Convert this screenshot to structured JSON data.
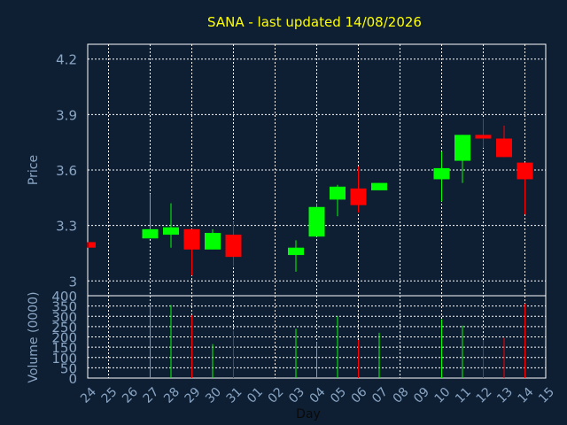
{
  "chart_data": {
    "type": "candlestick",
    "title": "SANA - last updated 14/08/2026",
    "xlabel": "Day",
    "ylabel_price": "Price",
    "ylabel_volume": "Volume (0000)",
    "price_ticks": [
      "3",
      "3.3",
      "3.6",
      "3.9",
      "4.2"
    ],
    "price_tick_values": [
      3.0,
      3.3,
      3.6,
      3.9,
      4.2
    ],
    "price_range": [
      2.92,
      4.28
    ],
    "volume_ticks": [
      "0",
      "50",
      "100",
      "150",
      "200",
      "250",
      "300",
      "350",
      "400"
    ],
    "volume_tick_values": [
      0,
      50,
      100,
      150,
      200,
      250,
      300,
      350,
      400
    ],
    "volume_range": [
      0,
      400
    ],
    "days": [
      "24",
      "25",
      "26",
      "27",
      "28",
      "29",
      "30",
      "31",
      "01",
      "02",
      "03",
      "04",
      "05",
      "06",
      "07",
      "08",
      "09",
      "10",
      "11",
      "12",
      "13",
      "14",
      "15"
    ],
    "candles": [
      {
        "day": "24",
        "open": 3.21,
        "high": 3.21,
        "low": 3.18,
        "close": 3.18,
        "volume": 0
      },
      {
        "day": "27",
        "open": 3.23,
        "high": 3.47,
        "low": 3.23,
        "close": 3.28,
        "volume": 355
      },
      {
        "day": "28",
        "open": 3.25,
        "high": 3.42,
        "low": 3.18,
        "close": 3.29,
        "volume": 355
      },
      {
        "day": "29",
        "open": 3.28,
        "high": 3.28,
        "low": 3.03,
        "close": 3.17,
        "volume": 305
      },
      {
        "day": "30",
        "open": 3.17,
        "high": 3.28,
        "low": 3.17,
        "close": 3.26,
        "volume": 165
      },
      {
        "day": "31",
        "open": 3.25,
        "high": 3.32,
        "low": 3.08,
        "close": 3.13,
        "volume": 230
      },
      {
        "day": "03",
        "open": 3.14,
        "high": 3.22,
        "low": 3.05,
        "close": 3.18,
        "volume": 240
      },
      {
        "day": "04",
        "open": 3.24,
        "high": 3.42,
        "low": 3.24,
        "close": 3.4,
        "volume": 175
      },
      {
        "day": "05",
        "open": 3.44,
        "high": 3.52,
        "low": 3.35,
        "close": 3.51,
        "volume": 300
      },
      {
        "day": "06",
        "open": 3.5,
        "high": 3.62,
        "low": 3.37,
        "close": 3.41,
        "volume": 185
      },
      {
        "day": "07",
        "open": 3.49,
        "high": 3.53,
        "low": 3.49,
        "close": 3.53,
        "volume": 220
      },
      {
        "day": "10",
        "open": 3.55,
        "high": 3.7,
        "low": 3.43,
        "close": 3.61,
        "volume": 285
      },
      {
        "day": "11",
        "open": 3.65,
        "high": 3.79,
        "low": 3.53,
        "close": 3.79,
        "volume": 255
      },
      {
        "day": "12",
        "open": 3.79,
        "high": 3.88,
        "low": 3.72,
        "close": 3.77,
        "volume": 185
      },
      {
        "day": "13",
        "open": 3.77,
        "high": 3.84,
        "low": 3.67,
        "close": 3.67,
        "volume": 195
      },
      {
        "day": "14",
        "open": 3.64,
        "high": 3.64,
        "low": 3.36,
        "close": 3.55,
        "volume": 360
      }
    ],
    "colors": {
      "background": "#0e1f33",
      "up": "#00ff00",
      "down": "#ff0000",
      "title": "#ffff00",
      "axis_text": "#8aa6c4",
      "grid": "#ffffff"
    },
    "grid": true
  }
}
